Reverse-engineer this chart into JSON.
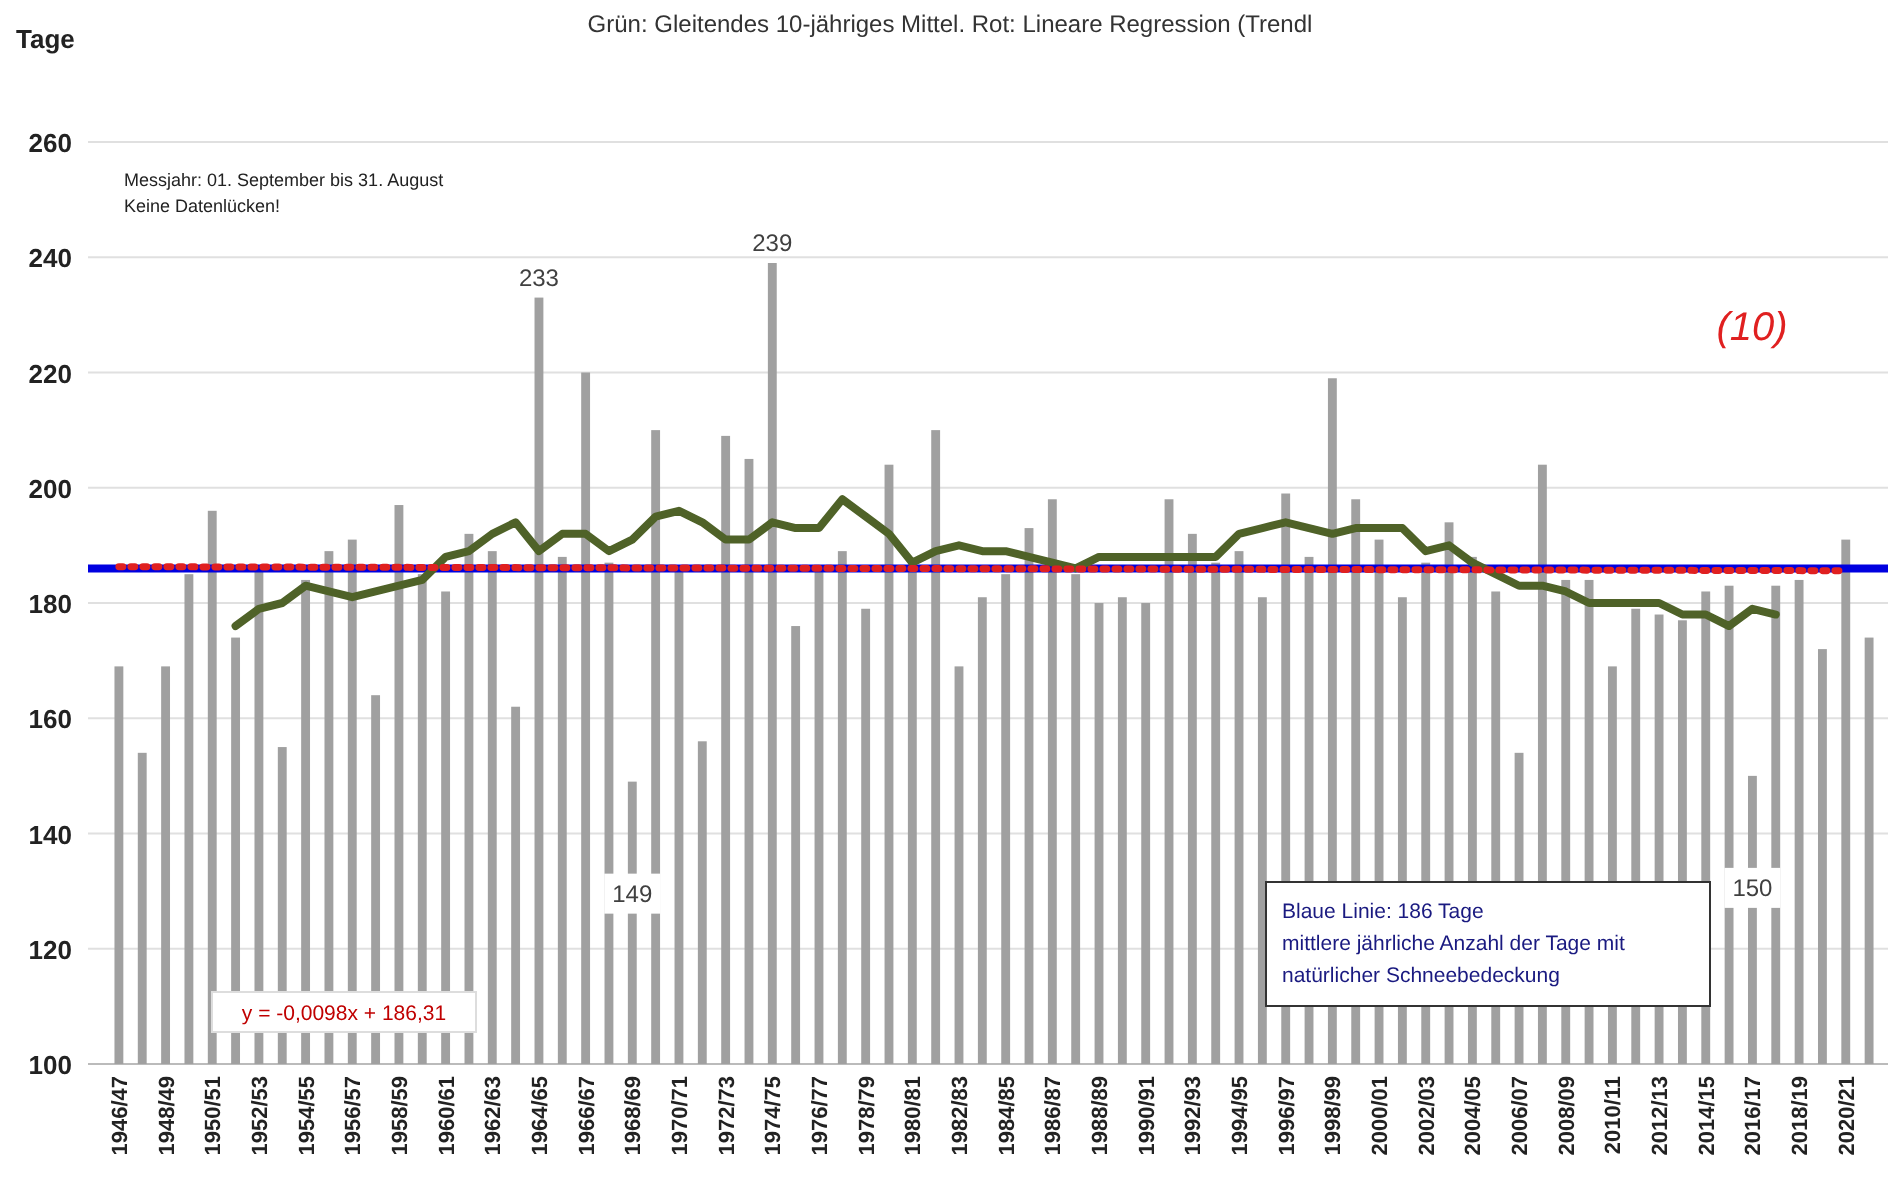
{
  "chart_data": {
    "type": "bar",
    "title": "Grün: Gleitendes 10-jähriges Mittel. Rot: Lineare Regression (Trendl",
    "ylabel": "Tage",
    "categories": [
      "1946/47",
      null,
      "1948/49",
      null,
      "1950/51",
      null,
      "1952/53",
      null,
      "1954/55",
      null,
      "1956/57",
      null,
      "1958/59",
      null,
      "1960/61",
      null,
      "1962/63",
      null,
      "1964/65",
      null,
      "1966/67",
      null,
      "1968/69",
      null,
      "1970/71",
      null,
      "1972/73",
      null,
      "1974/75",
      null,
      "1976/77",
      null,
      "1978/79",
      null,
      "1980/81",
      null,
      "1982/83",
      null,
      "1984/85",
      null,
      "1986/87",
      null,
      "1988/89",
      null,
      "1990/91",
      null,
      "1992/93",
      null,
      "1994/95",
      null,
      "1996/97",
      null,
      "1998/99",
      null,
      "2000/01",
      null,
      "2002/03",
      null,
      "2004/05",
      null,
      "2006/07",
      null,
      "2008/09",
      null,
      "2010/11",
      null,
      "2012/13",
      null,
      "2014/15",
      null,
      "2016/17",
      null,
      "2018/19",
      null,
      "2020/21",
      null
    ],
    "series": [
      {
        "color": "#a0a0a0",
        "values": [
          169,
          154,
          169,
          185,
          196,
          174,
          186,
          155,
          184,
          189,
          191,
          164,
          197,
          185,
          182,
          192,
          189,
          162,
          233,
          188,
          220,
          187,
          149,
          210,
          186,
          156,
          209,
          205,
          239,
          176,
          186,
          189,
          179,
          204,
          187,
          210,
          169,
          181,
          185,
          193,
          198,
          185,
          180,
          181,
          180,
          198,
          192,
          187,
          189,
          181,
          199,
          188,
          219,
          198,
          191,
          181,
          187,
          194,
          188,
          182,
          154,
          204,
          184,
          184,
          169,
          179,
          178,
          177,
          182,
          183,
          150,
          183,
          184,
          172,
          191,
          174
        ],
        "value_labels": [
          null,
          null,
          null,
          null,
          null,
          null,
          null,
          null,
          null,
          null,
          null,
          null,
          null,
          null,
          null,
          null,
          null,
          null,
          "233",
          null,
          null,
          null,
          "149",
          null,
          null,
          null,
          null,
          null,
          "239",
          null,
          null,
          null,
          null,
          null,
          null,
          null,
          null,
          null,
          null,
          null,
          null,
          null,
          null,
          null,
          null,
          null,
          null,
          null,
          null,
          null,
          null,
          null,
          null,
          null,
          null,
          null,
          null,
          null,
          null,
          null,
          null,
          null,
          null,
          null,
          null,
          null,
          null,
          null,
          null,
          null,
          "150",
          null,
          null,
          null,
          null,
          null
        ]
      },
      {
        "type": "line",
        "color": "#4f6228",
        "line_style": "solid",
        "values": [
          null,
          null,
          null,
          null,
          null,
          176,
          179,
          180,
          183,
          182,
          181,
          182,
          183,
          184,
          188,
          189,
          192,
          194,
          189,
          192,
          192,
          189,
          191,
          195,
          196,
          194,
          191,
          191,
          194,
          193,
          193,
          198,
          195,
          192,
          187,
          189,
          190,
          189,
          189,
          188,
          187,
          186,
          188,
          188,
          188,
          188,
          188,
          188,
          192,
          193,
          194,
          193,
          192,
          193,
          193,
          193,
          189,
          190,
          187,
          185,
          183,
          183,
          182,
          180,
          180,
          180,
          180,
          178,
          178,
          176,
          179,
          178,
          null,
          null,
          null,
          null
        ]
      },
      {
        "type": "line",
        "color": "#e02020",
        "line_style": "dotted",
        "x": [
          "1946/47",
          "2020/21"
        ],
        "values": [
          186.3,
          185.6
        ]
      }
    ],
    "ylim": [
      100,
      260
    ],
    "yticks": [
      100,
      120,
      140,
      160,
      180,
      200,
      220,
      240,
      260
    ],
    "grid": "y",
    "marker": "none",
    "ref_lines": [
      {
        "axis": "y",
        "value": 186,
        "color": "#0000e0"
      }
    ],
    "annotations": [
      "Messjahr: 01. September bis 31. August",
      "Keine Datenlücken!",
      "(10)",
      "y = -0,0098x + 186,31",
      "Blaue Linie: 186 Tage\nmittlere jährliche Anzahl der Tage mit\nnatürlicher Schneebedeckung"
    ]
  }
}
